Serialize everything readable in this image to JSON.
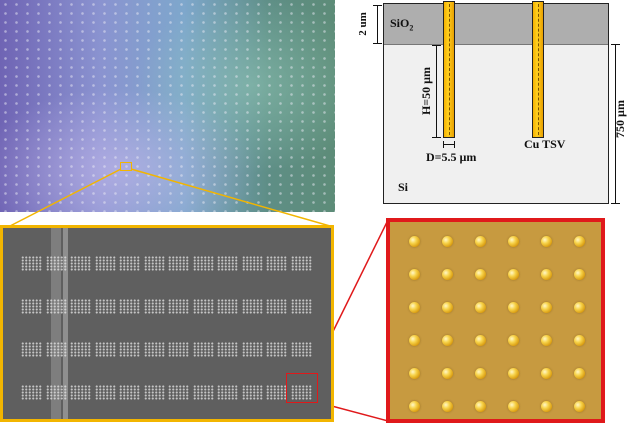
{
  "schematic": {
    "oxide_label_main": "SiO",
    "oxide_label_sub": "2",
    "oxide_thickness": "2 um",
    "via_height": "H=50 µm",
    "via_diameter": "D=5.5 µm",
    "via_label": "Cu TSV",
    "substrate_label": "Si",
    "wafer_thickness": "750 µm"
  },
  "colors": {
    "zoom_outline_primary": "#f2b500",
    "zoom_outline_secondary": "#e0191b",
    "copper_fill": "#f5b000",
    "oxide_fill": "#aeaeae",
    "silicon_fill": "#f0f0f0"
  },
  "optical_grid": {
    "rows": 6,
    "cols": 6
  },
  "sem_grid": {
    "rows": 4,
    "cols": 12
  }
}
